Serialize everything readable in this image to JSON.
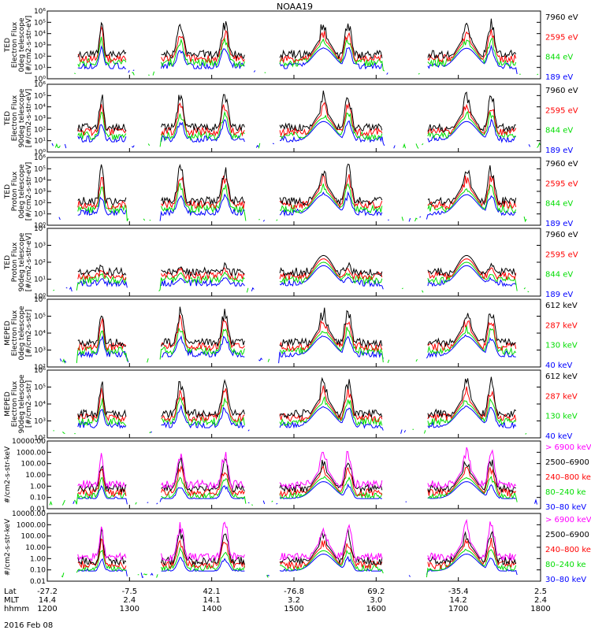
{
  "title": "NOAA19",
  "date": "2016 Feb 08",
  "axis_rows": [
    {
      "label": "Lat",
      "values": [
        "-27.2",
        "-7.5",
        "42.1",
        "-76.8",
        "69.2",
        "-35.4",
        "2.5"
      ]
    },
    {
      "label": "MLT",
      "values": [
        "14.4",
        "2.4",
        "14.1",
        "3.2",
        "3.0",
        "14.2",
        "2.4"
      ]
    },
    {
      "label": "hhmm",
      "values": [
        "1200",
        "1300",
        "1400",
        "1500",
        "1600",
        "1700",
        "1800"
      ]
    }
  ],
  "colors": {
    "black": "#000000",
    "red": "#ff0000",
    "green": "#00dd00",
    "blue": "#0000ff",
    "magenta": "#ff00ff"
  },
  "chart_data": [
    {
      "type": "line",
      "ylabel": "TED\nElectron Flux\n0deg telescope\n[#/cm2-s-str-eV]",
      "y_ticks": [
        "10⁰",
        "10¹",
        "10²",
        "10³",
        "10⁴",
        "10⁵",
        "10⁶"
      ],
      "ylim_log": [
        0,
        6
      ],
      "log_scale": true,
      "x": [
        "1200",
        "1300",
        "1400",
        "1500",
        "1600",
        "1700",
        "1800"
      ],
      "legend": [
        {
          "name": "7960 eV",
          "color": "black"
        },
        {
          "name": "2595 eV",
          "color": "red"
        },
        {
          "name": "844 eV",
          "color": "green"
        },
        {
          "name": "189 eV",
          "color": "blue"
        }
      ]
    },
    {
      "type": "line",
      "ylabel": "TED\nElectron Flux\n90deg telescope\n[#/cm2-s-str-eV]",
      "y_ticks": [
        "10⁰",
        "10¹",
        "10²",
        "10³",
        "10⁴",
        "10⁵",
        "10⁶"
      ],
      "ylim_log": [
        0,
        6
      ],
      "log_scale": true,
      "legend": [
        {
          "name": "7960 eV",
          "color": "black"
        },
        {
          "name": "2595 eV",
          "color": "red"
        },
        {
          "name": "844 eV",
          "color": "green"
        },
        {
          "name": "189 eV",
          "color": "blue"
        }
      ]
    },
    {
      "type": "line",
      "ylabel": "TED\nProton Flux\n0deg telescope\n[#/cm2-s-str-eV]",
      "y_ticks": [
        "10⁰",
        "10¹",
        "10²",
        "10³",
        "10⁴",
        "10⁵",
        "10⁶"
      ],
      "ylim_log": [
        0,
        6
      ],
      "log_scale": true,
      "legend": [
        {
          "name": "7960 eV",
          "color": "black"
        },
        {
          "name": "2595 eV",
          "color": "red"
        },
        {
          "name": "844 eV",
          "color": "green"
        },
        {
          "name": "189 eV",
          "color": "blue"
        }
      ]
    },
    {
      "type": "line",
      "ylabel": "TED\nProton Flux\n90deg telescope\n[#/cm2-s-str-eV]",
      "y_ticks": [
        "10⁰",
        "10¹",
        "10²",
        "10³",
        "10⁴"
      ],
      "ylim_log": [
        0,
        4
      ],
      "log_scale": true,
      "legend": [
        {
          "name": "7960 eV",
          "color": "black"
        },
        {
          "name": "2595 eV",
          "color": "red"
        },
        {
          "name": "844 eV",
          "color": "green"
        },
        {
          "name": "189 eV",
          "color": "blue"
        }
      ]
    },
    {
      "type": "line",
      "ylabel": "MEPED\nElectron Flux\n0deg telescope\n[#/cm2-s-str]",
      "y_ticks": [
        "10²",
        "10³",
        "10⁴",
        "10⁵",
        "10⁶"
      ],
      "ylim_log": [
        2,
        6
      ],
      "log_scale": true,
      "legend": [
        {
          "name": "612 keV",
          "color": "black"
        },
        {
          "name": "287 keV",
          "color": "red"
        },
        {
          "name": "130 keV",
          "color": "green"
        },
        {
          "name": "40 keV",
          "color": "blue"
        }
      ]
    },
    {
      "type": "line",
      "ylabel": "MEPED\nElectron Flux\n90deg telescope\n[#/cm2-s-str]",
      "y_ticks": [
        "10²",
        "10³",
        "10⁴",
        "10⁵",
        "10⁶"
      ],
      "ylim_log": [
        2,
        6
      ],
      "log_scale": true,
      "legend": [
        {
          "name": "612 keV",
          "color": "black"
        },
        {
          "name": "287 keV",
          "color": "red"
        },
        {
          "name": "130 keV",
          "color": "green"
        },
        {
          "name": "40 keV",
          "color": "blue"
        }
      ]
    },
    {
      "type": "line",
      "ylabel": "#/cm2-s-str-keV",
      "y_ticks": [
        "0.01",
        "0.10",
        "1.00",
        "10.00",
        "100.00",
        "1000.00",
        "10000.00"
      ],
      "ylim_log": [
        -2,
        4
      ],
      "log_scale": true,
      "legend": [
        {
          "name": "> 6900 keV",
          "color": "magenta"
        },
        {
          "name": "2500–6900",
          "color": "black"
        },
        {
          "name": "240–800 ke",
          "color": "red"
        },
        {
          "name": "80–240 ke",
          "color": "green"
        },
        {
          "name": "30–80 keV",
          "color": "blue"
        }
      ]
    },
    {
      "type": "line",
      "ylabel": "#/cm2-s-str-keV",
      "y_ticks": [
        "0.01",
        "0.10",
        "1.00",
        "10.00",
        "100.00",
        "1000.00",
        "10000.00"
      ],
      "ylim_log": [
        -2,
        4
      ],
      "log_scale": true,
      "legend": [
        {
          "name": "> 6900 keV",
          "color": "magenta"
        },
        {
          "name": "2500–6900",
          "color": "black"
        },
        {
          "name": "240–800 ke",
          "color": "red"
        },
        {
          "name": "80–240 ke",
          "color": "green"
        },
        {
          "name": "30–80 keV",
          "color": "blue"
        }
      ]
    }
  ]
}
